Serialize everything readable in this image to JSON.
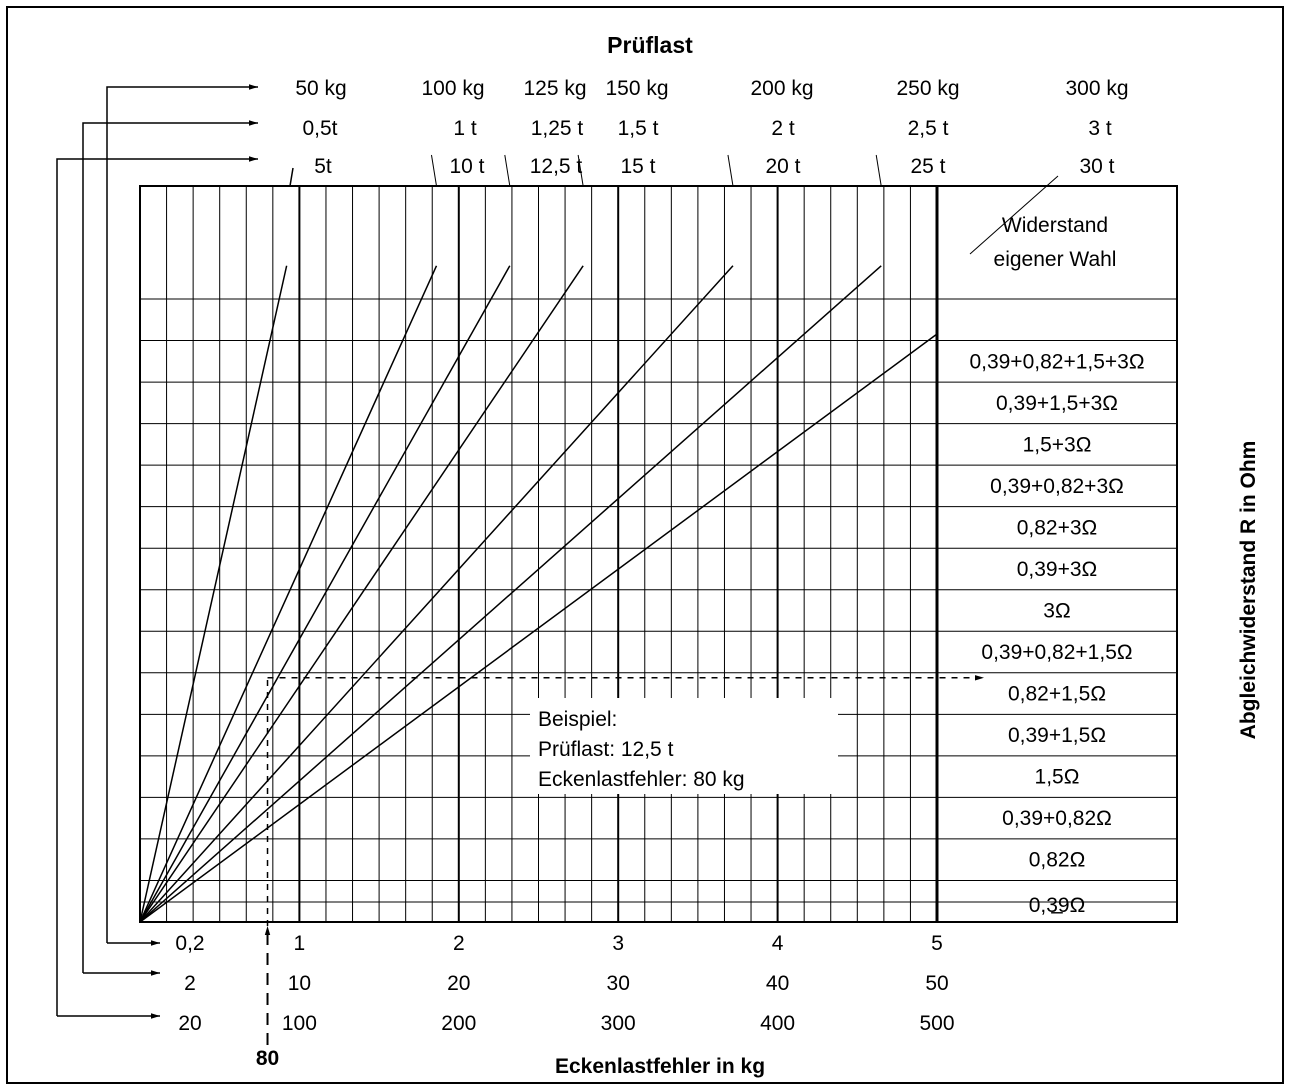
{
  "chart_data": {
    "type": "line",
    "title": "Prüflast",
    "xlabel": "Eckenlastfehler in kg",
    "ylabel": "Abgleichwiderstand R in Ohm",
    "x_scales": [
      {
        "ticks": [
          "0,2",
          "1",
          "2",
          "3",
          "4",
          "5"
        ],
        "values": [
          0.2,
          1,
          2,
          3,
          4,
          5
        ]
      },
      {
        "ticks": [
          "2",
          "10",
          "20",
          "30",
          "40",
          "50"
        ],
        "values": [
          2,
          10,
          20,
          30,
          40,
          50
        ]
      },
      {
        "ticks": [
          "20",
          "100",
          "200",
          "300",
          "400",
          "500"
        ],
        "values": [
          20,
          100,
          200,
          300,
          400,
          500
        ]
      }
    ],
    "xlim": [
      0,
      5
    ],
    "load_labels": [
      {
        "kg": "50 kg",
        "t": "0,5t",
        "t10": "5t"
      },
      {
        "kg": "100 kg",
        "t": "1 t",
        "t10": "10 t"
      },
      {
        "kg": "125 kg",
        "t": "1,25 t",
        "t10": "12,5 t"
      },
      {
        "kg": "150 kg",
        "t": "1,5 t",
        "t10": "15 t"
      },
      {
        "kg": "200 kg",
        "t": "2 t",
        "t10": "20 t"
      },
      {
        "kg": "250 kg",
        "t": "2,5 t",
        "t10": "25 t"
      },
      {
        "kg": "300 kg",
        "t": "3 t",
        "t10": "30 t"
      }
    ],
    "series": [
      {
        "name": "50 kg",
        "x": [
          0,
          0.92
        ],
        "y_rows": [
          0,
          15.8
        ]
      },
      {
        "name": "100 kg",
        "x": [
          0,
          1.86
        ],
        "y_rows": [
          0,
          15.8
        ]
      },
      {
        "name": "125 kg",
        "x": [
          0,
          2.32
        ],
        "y_rows": [
          0,
          15.8
        ]
      },
      {
        "name": "150 kg",
        "x": [
          0,
          2.78
        ],
        "y_rows": [
          0,
          15.8
        ]
      },
      {
        "name": "200 kg",
        "x": [
          0,
          3.72
        ],
        "y_rows": [
          0,
          15.8
        ]
      },
      {
        "name": "250 kg",
        "x": [
          0,
          4.65
        ],
        "y_rows": [
          0,
          15.8
        ]
      },
      {
        "name": "300 kg",
        "x": [
          0,
          5.58
        ],
        "y_rows": [
          0,
          15.8
        ]
      }
    ],
    "resistances": [
      "–",
      "0,39Ω",
      "0,82Ω",
      "0,39+0,82Ω",
      "1,5Ω",
      "0,39+1,5Ω",
      "0,82+1,5Ω",
      "0,39+0,82+1,5Ω",
      "3Ω",
      "0,39+3Ω",
      "0,82+3Ω",
      "0,39+0,82+3Ω",
      "1,5+3Ω",
      "0,39+1,5+3Ω",
      "0,39+0,82+1,5+3Ω"
    ],
    "resistance_custom": [
      "Widerstand",
      "eigener Wahl"
    ],
    "example": {
      "lines": [
        "Beispiel:",
        "Prüflast: 12,5 t",
        "Eckenlastfehler: 80 kg"
      ],
      "marker_label": "80",
      "x_value": 0.8,
      "result_row": 6
    },
    "grid": true
  }
}
